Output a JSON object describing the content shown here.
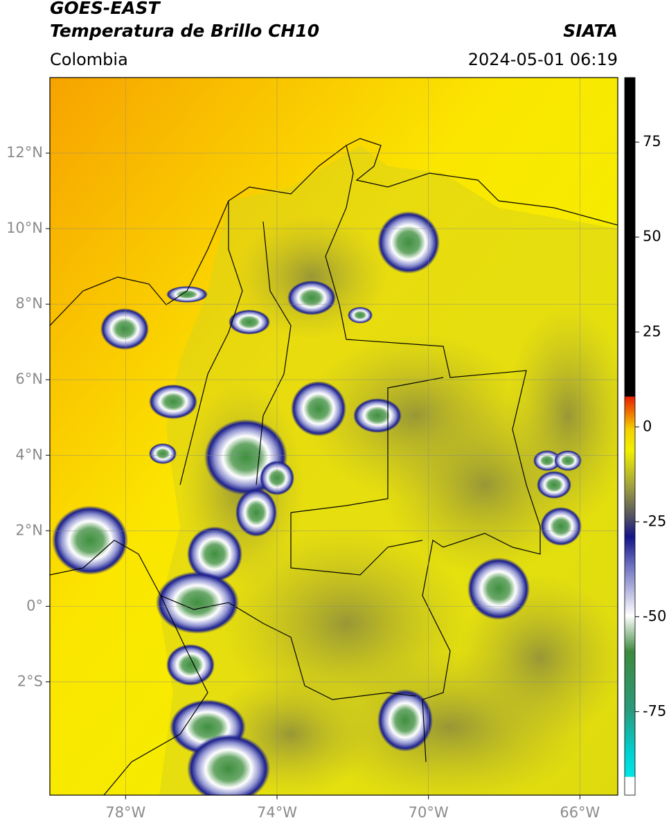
{
  "header": {
    "title": "GOES-EAST",
    "subtitle": "Temperatura de Brillo CH10",
    "source": "SIATA",
    "region": "Colombia",
    "datetime": "2024-05-01 06:19"
  },
  "map": {
    "xlim": [
      -80,
      -65
    ],
    "ylim": [
      -5,
      14
    ],
    "xticks": [
      {
        "value": -78,
        "label": "78°W"
      },
      {
        "value": -74,
        "label": "74°W"
      },
      {
        "value": -70,
        "label": "70°W"
      },
      {
        "value": -66,
        "label": "66°W"
      }
    ],
    "yticks": [
      {
        "value": 12,
        "label": "12°N"
      },
      {
        "value": 10,
        "label": "10°N"
      },
      {
        "value": 8,
        "label": "8°N"
      },
      {
        "value": 6,
        "label": "6°N"
      },
      {
        "value": 4,
        "label": "4°N"
      },
      {
        "value": 2,
        "label": "2°N"
      },
      {
        "value": 0,
        "label": "0°"
      },
      {
        "value": -2,
        "label": "2°S"
      }
    ],
    "grid": true
  },
  "colorbar": {
    "lim": [
      -97,
      92
    ],
    "ticks": [
      75,
      50,
      25,
      0,
      -25,
      -50,
      -75
    ]
  }
}
